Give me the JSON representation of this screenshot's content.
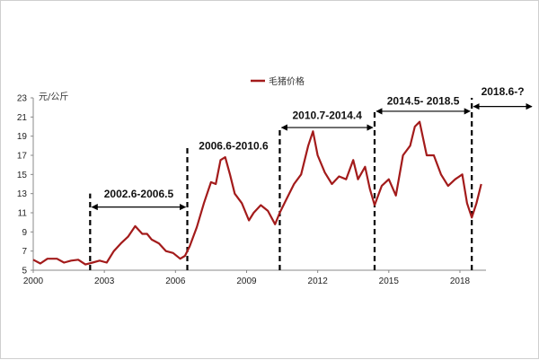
{
  "chart_data": {
    "type": "line",
    "ylabel": "元/公斤",
    "legend": {
      "position": "top-center",
      "entries": [
        "毛猪价格"
      ]
    },
    "ylim": [
      5,
      23
    ],
    "yticks": [
      5,
      7,
      9,
      11,
      13,
      15,
      17,
      19,
      21,
      23
    ],
    "xlim": [
      2000,
      2019.1
    ],
    "xticks": [
      2000,
      2003,
      2006,
      2009,
      2012,
      2015,
      2018
    ],
    "grid": false,
    "series": [
      {
        "name": "毛猪价格",
        "color": "#a31b1b",
        "x": [
          2000.0,
          2000.3,
          2000.6,
          2001.0,
          2001.3,
          2001.6,
          2001.9,
          2002.2,
          2002.5,
          2002.8,
          2003.1,
          2003.4,
          2003.7,
          2004.0,
          2004.3,
          2004.6,
          2004.8,
          2005.0,
          2005.3,
          2005.6,
          2005.9,
          2006.2,
          2006.4,
          2006.6,
          2006.9,
          2007.2,
          2007.5,
          2007.7,
          2007.9,
          2008.1,
          2008.3,
          2008.5,
          2008.8,
          2009.1,
          2009.3,
          2009.6,
          2009.9,
          2010.2,
          2010.4,
          2010.7,
          2011.0,
          2011.3,
          2011.6,
          2011.8,
          2012.0,
          2012.3,
          2012.6,
          2012.9,
          2013.2,
          2013.5,
          2013.7,
          2014.0,
          2014.2,
          2014.4,
          2014.7,
          2015.0,
          2015.3,
          2015.6,
          2015.9,
          2016.1,
          2016.3,
          2016.6,
          2016.9,
          2017.2,
          2017.5,
          2017.8,
          2018.1,
          2018.3,
          2018.5,
          2018.7,
          2018.9
        ],
        "values": [
          6.1,
          5.7,
          6.2,
          6.2,
          5.8,
          6.0,
          6.1,
          5.6,
          5.8,
          6.0,
          5.8,
          7.0,
          7.8,
          8.5,
          9.6,
          8.8,
          8.8,
          8.2,
          7.8,
          7.0,
          6.8,
          6.2,
          6.5,
          7.5,
          9.5,
          12.0,
          14.2,
          14.0,
          16.5,
          16.8,
          15.0,
          13.0,
          12.0,
          10.2,
          11.0,
          11.8,
          11.2,
          9.8,
          11.0,
          12.5,
          14.0,
          15.0,
          18.0,
          19.5,
          17.0,
          15.2,
          14.0,
          14.8,
          14.5,
          16.5,
          14.5,
          15.8,
          13.5,
          11.8,
          13.8,
          14.5,
          12.8,
          17.0,
          18.0,
          20.0,
          20.5,
          17.0,
          17.0,
          15.0,
          13.8,
          14.5,
          15.0,
          12.0,
          10.5,
          12.0,
          14.0
        ]
      }
    ],
    "boundaries": [
      {
        "x": 2002.4,
        "top": 13
      },
      {
        "x": 2006.5,
        "top": 18.0
      },
      {
        "x": 2010.4,
        "top": 20.0
      },
      {
        "x": 2014.4,
        "top": 21.5
      },
      {
        "x": 2018.5,
        "top": 23.0
      }
    ],
    "periods": [
      {
        "label": "2002.6-2006.5",
        "from": 2002.4,
        "to": 2006.5,
        "y": 11.6,
        "label_y": 12.6
      },
      {
        "label": "2006.6-2010.6",
        "from": 2006.5,
        "to": 2010.4,
        "y": null,
        "label_y": 17.6
      },
      {
        "label": "2010.7-2014.4",
        "from": 2010.4,
        "to": 2014.4,
        "y": 19.9,
        "label_y": 20.8
      },
      {
        "label": "2014.5- 2018.5",
        "from": 2014.4,
        "to": 2018.5,
        "y": 21.6,
        "label_y": 22.3
      },
      {
        "label": "2018.6-?",
        "from": 2018.5,
        "to": 2021.3,
        "y": 22.1,
        "label_y": 23.3
      }
    ]
  }
}
